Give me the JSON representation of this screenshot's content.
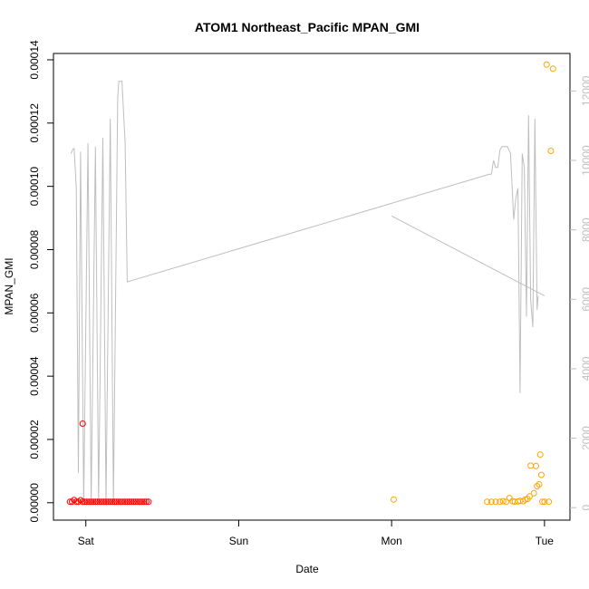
{
  "chart_data": {
    "type": "scatter",
    "title": "ATOM1 Northeast_Pacific MPAN_GMI",
    "xlabel": "Date",
    "ylabel": "MPAN_GMI",
    "x_ticks": [
      "Sat",
      "Sun",
      "Mon",
      "Tue"
    ],
    "xlim": [
      "Fri 18:55",
      "Tue 04:00"
    ],
    "ylim": [
      -5.5e-06,
      0.000142
    ],
    "y_ticks": [
      "0.00000",
      "0.00002",
      "0.00004",
      "0.00006",
      "0.00008",
      "0.00010",
      "0.00012",
      "0.00014"
    ],
    "y_tick_values": [
      0,
      2e-05,
      4e-05,
      6e-05,
      8e-05,
      0.0001,
      0.00012,
      0.00014
    ],
    "y2_label": "",
    "y2lim": [
      -360,
      13080
    ],
    "y2_ticks": [
      "0",
      "2000",
      "4000",
      "6000",
      "8000",
      "10000",
      "12000"
    ],
    "y2_tick_values": [
      0,
      2000,
      4000,
      6000,
      8000,
      10000,
      12000
    ],
    "grid": false,
    "legend": "none",
    "colors": {
      "series_red": "#ff0000",
      "series_orange": "#ffa500",
      "altitude_line": "#bebebe"
    },
    "series": [
      {
        "axis": "left",
        "color": "#ff0000",
        "points": [
          [
            "Fri 21:30",
            3e-07
          ],
          [
            "Fri 21:50",
            3e-07
          ],
          [
            "Fri 22:10",
            9e-07
          ],
          [
            "Fri 22:30",
            3e-07
          ],
          [
            "Fri 22:50",
            3e-07
          ],
          [
            "Fri 23:10",
            8e-07
          ],
          [
            "Fri 23:30",
            3e-07
          ],
          [
            "Fri 23:50",
            3e-07
          ],
          [
            "Sat 00:10",
            3e-07
          ],
          [
            "Sat 00:30",
            3e-07
          ],
          [
            "Sat 00:50",
            3e-07
          ],
          [
            "Sat 01:10",
            3e-07
          ],
          [
            "Sat 01:30",
            3e-07
          ],
          [
            "Sat 01:50",
            3e-07
          ],
          [
            "Sat 02:10",
            3e-07
          ],
          [
            "Sat 02:30",
            3e-07
          ],
          [
            "Sat 02:50",
            3e-07
          ],
          [
            "Sat 03:10",
            3e-07
          ],
          [
            "Sat 03:30",
            3e-07
          ],
          [
            "Sat 03:50",
            3e-07
          ],
          [
            "Sat 04:10",
            3e-07
          ],
          [
            "Sat 04:30",
            3e-07
          ],
          [
            "Sat 04:50",
            3e-07
          ],
          [
            "Sat 05:10",
            3e-07
          ],
          [
            "Sat 05:30",
            3e-07
          ],
          [
            "Sat 05:50",
            3e-07
          ],
          [
            "Sat 06:10",
            3e-07
          ],
          [
            "Sat 06:30",
            3e-07
          ],
          [
            "Sat 06:50",
            3e-07
          ],
          [
            "Sat 07:10",
            3e-07
          ],
          [
            "Sat 07:30",
            3e-07
          ],
          [
            "Sat 07:50",
            3e-07
          ],
          [
            "Sat 08:10",
            3e-07
          ],
          [
            "Sat 08:30",
            3e-07
          ],
          [
            "Sat 08:50",
            3e-07
          ],
          [
            "Sat 09:10",
            3e-07
          ],
          [
            "Sat 09:30",
            3e-07
          ],
          [
            "Sat 09:50",
            3e-07
          ],
          [
            "Fri 23:30",
            2.5e-05
          ]
        ]
      },
      {
        "axis": "left",
        "color": "#ffa500",
        "points": [
          [
            "Mon 00:20",
            1e-06
          ],
          [
            "Mon 15:00",
            3e-07
          ],
          [
            "Mon 15:40",
            3e-07
          ],
          [
            "Mon 16:20",
            3e-07
          ],
          [
            "Mon 17:00",
            3e-07
          ],
          [
            "Mon 17:30",
            5e-07
          ],
          [
            "Mon 18:00",
            3e-07
          ],
          [
            "Mon 18:30",
            1.5e-06
          ],
          [
            "Mon 19:00",
            5e-07
          ],
          [
            "Mon 19:20",
            3e-07
          ],
          [
            "Mon 19:50",
            4e-07
          ],
          [
            "Mon 20:10",
            6e-07
          ],
          [
            "Mon 20:40",
            5e-07
          ],
          [
            "Mon 21:00",
            1e-06
          ],
          [
            "Mon 21:20",
            1.2e-06
          ],
          [
            "Mon 21:40",
            2e-06
          ],
          [
            "Mon 21:50",
            1.17e-05
          ],
          [
            "Mon 22:20",
            3e-06
          ],
          [
            "Mon 22:40",
            1.16e-05
          ],
          [
            "Mon 22:50",
            5.2e-06
          ],
          [
            "Mon 23:10",
            5.8e-06
          ],
          [
            "Mon 23:20",
            1.52e-05
          ],
          [
            "Mon 23:30",
            8.8e-06
          ],
          [
            "Mon 23:40",
            3e-07
          ],
          [
            "Tue 00:00",
            3e-07
          ],
          [
            "Tue 00:20",
            0.0001385
          ],
          [
            "Tue 00:40",
            3e-07
          ],
          [
            "Tue 01:00",
            0.0001112
          ],
          [
            "Tue 01:20",
            0.0001372
          ]
        ]
      },
      {
        "axis": "right",
        "type": "line",
        "color": "#bebebe",
        "points": [
          [
            "Fri 21:40",
            10200
          ],
          [
            "Fri 21:55",
            10300
          ],
          [
            "Fri 22:10",
            10350
          ],
          [
            "Fri 22:30",
            9200
          ],
          [
            "Fri 22:50",
            1000
          ],
          [
            "Fri 23:10",
            10250
          ],
          [
            "Fri 23:40",
            150
          ],
          [
            "Sat 00:20",
            10500
          ],
          [
            "Sat 00:50",
            150
          ],
          [
            "Sat 01:30",
            10400
          ],
          [
            "Sat 02:00",
            150
          ],
          [
            "Sat 02:40",
            10650
          ],
          [
            "Sat 03:10",
            150
          ],
          [
            "Sat 03:50",
            11200
          ],
          [
            "Sat 04:20",
            150
          ],
          [
            "Sat 05:00",
            11800
          ],
          [
            "Sat 05:10",
            12280
          ],
          [
            "Sat 05:40",
            12280
          ],
          [
            "Sat 06:10",
            10500
          ],
          [
            "Sat 06:30",
            6500
          ],
          [
            "Mon 15:20",
            9600
          ],
          [
            "Mon 15:40",
            9600
          ],
          [
            "Mon 16:00",
            10000
          ],
          [
            "Mon 16:20",
            9800
          ],
          [
            "Mon 16:40",
            9800
          ],
          [
            "Mon 17:00",
            10300
          ],
          [
            "Mon 17:20",
            10400
          ],
          [
            "Mon 18:10",
            10400
          ],
          [
            "Mon 18:40",
            10200
          ],
          [
            "Mon 19:10",
            8300
          ],
          [
            "Mon 19:30",
            8900
          ],
          [
            "Mon 19:50",
            9200
          ],
          [
            "Mon 20:10",
            3300
          ],
          [
            "Mon 20:30",
            10200
          ],
          [
            "Mon 20:50",
            9800
          ],
          [
            "Mon 21:10",
            5500
          ],
          [
            "Mon 21:30",
            11300
          ],
          [
            "Mon 21:50",
            6000
          ],
          [
            "Mon 22:10",
            5200
          ],
          [
            "Mon 22:30",
            11200
          ],
          [
            "Mon 22:50",
            5700
          ],
          [
            "Mon 23:00",
            6100
          ]
        ],
        "extra_segment": [
          [
            "Mon 00:00",
            8400
          ],
          [
            "Tue 00:00",
            6100
          ]
        ]
      }
    ]
  }
}
